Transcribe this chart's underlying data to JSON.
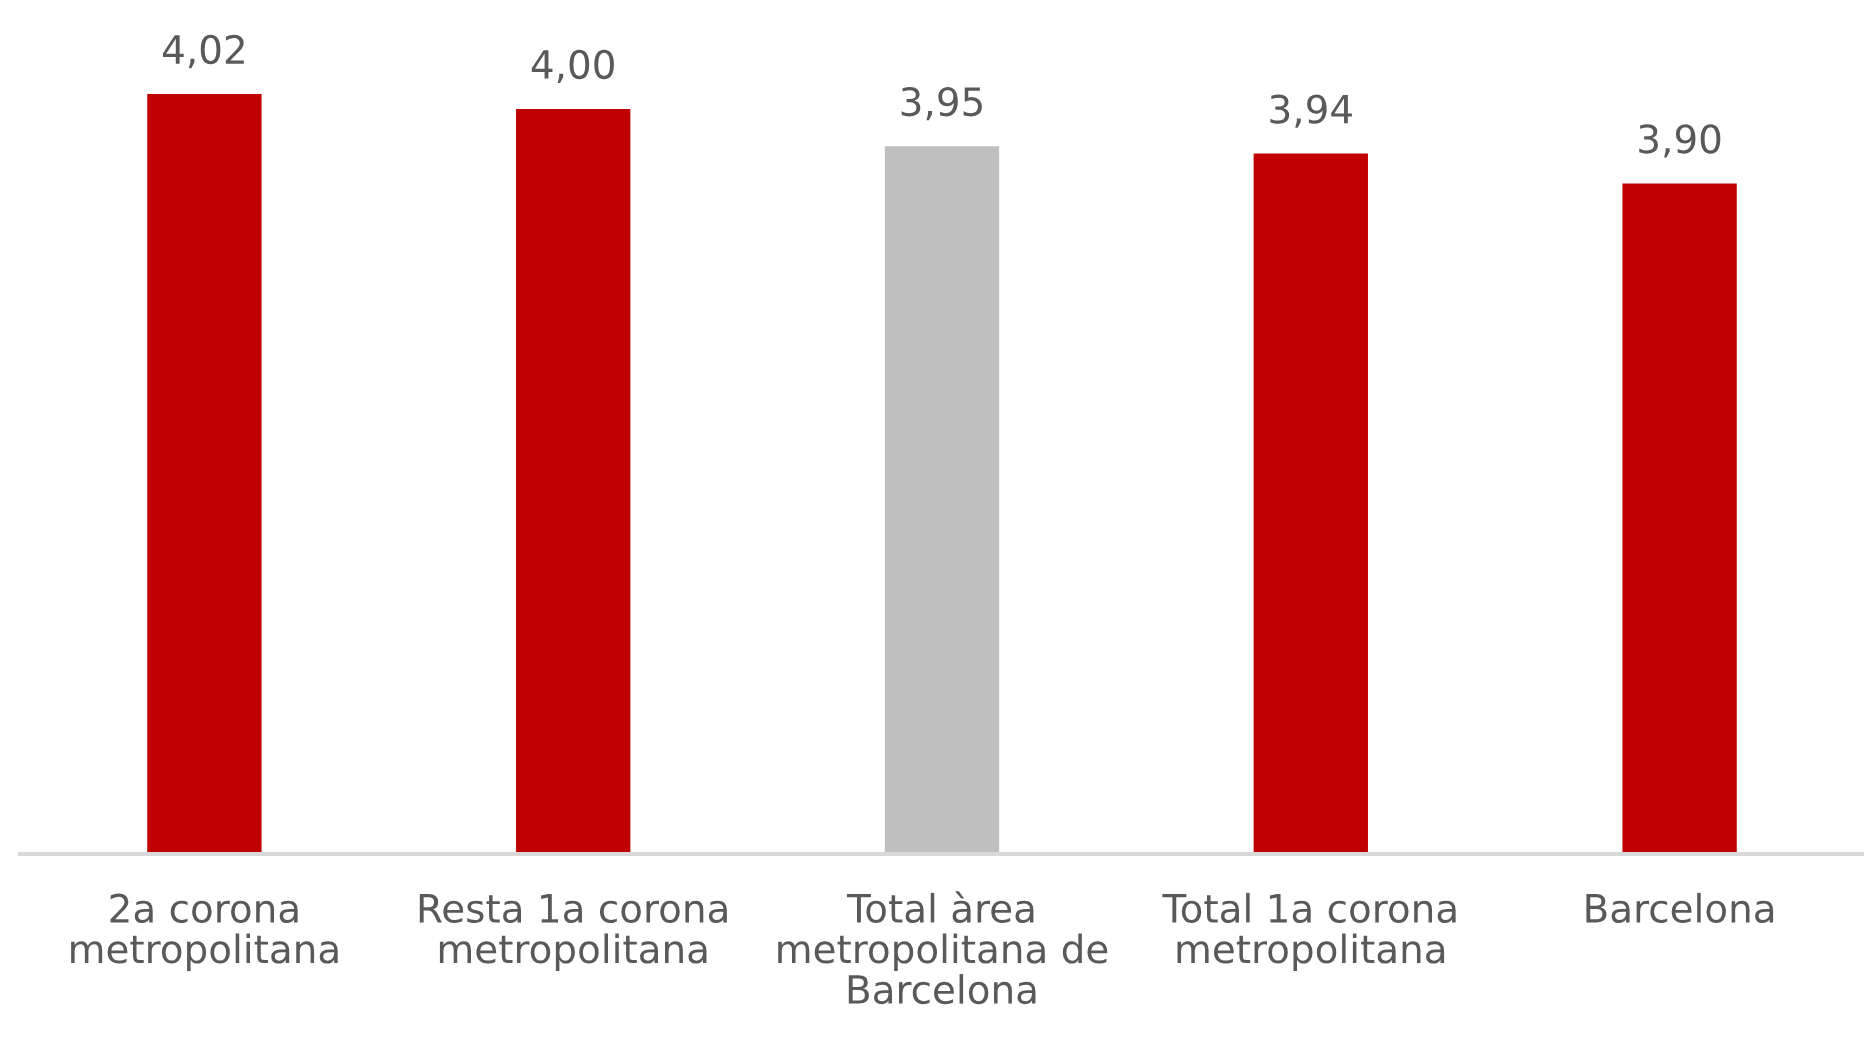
{
  "chart_data": {
    "type": "bar",
    "categories": [
      "2a corona metropolitana",
      "Resta 1a corona metropolitana",
      "Total àrea metropolitana de Barcelona",
      "Total 1a corona metropolitana",
      "Barcelona"
    ],
    "values": [
      4.02,
      4.0,
      3.95,
      3.94,
      3.9
    ],
    "colors": [
      "#c00000",
      "#c00000",
      "#bfbfbf",
      "#c00000",
      "#c00000"
    ],
    "value_labels": [
      "4,02",
      "4,00",
      "3,95",
      "3,94",
      "3,90"
    ],
    "ylim": [
      3.0,
      4.02
    ],
    "tick_labels": "x"
  }
}
